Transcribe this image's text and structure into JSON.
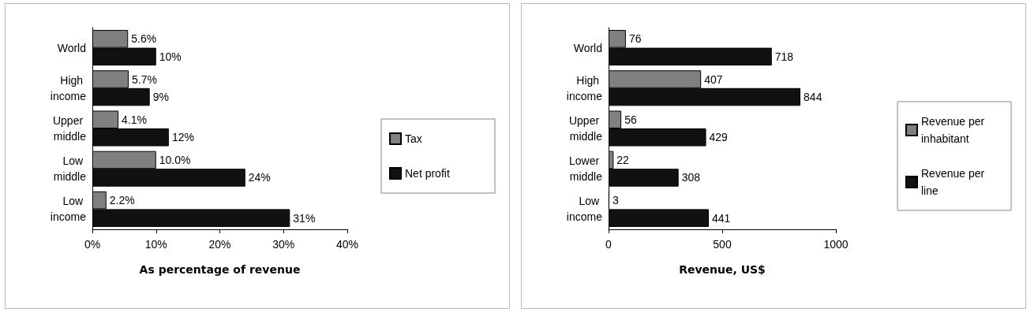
{
  "chart_data": [
    {
      "type": "bar",
      "orientation": "horizontal",
      "xlabel": "As percentage of revenue",
      "categories": [
        "World",
        "High income",
        "Upper middle",
        "Low middle",
        "Low income"
      ],
      "series": [
        {
          "name": "Tax",
          "color": "#808080",
          "values": [
            5.6,
            5.7,
            4.1,
            10.0,
            2.2
          ],
          "value_labels": [
            "5.6%",
            "5.7%",
            "4.1%",
            "10.0%",
            "2.2%"
          ]
        },
        {
          "name": "Net profit",
          "color": "#111111",
          "values": [
            10,
            9,
            12,
            24,
            31
          ],
          "value_labels": [
            "10%",
            "9%",
            "12%",
            "24%",
            "31%"
          ]
        }
      ],
      "xlim": [
        0,
        40
      ],
      "xticks": [
        {
          "value": 0,
          "label": "0%"
        },
        {
          "value": 10,
          "label": "10%"
        },
        {
          "value": 20,
          "label": "20%"
        },
        {
          "value": 30,
          "label": "30%"
        },
        {
          "value": 40,
          "label": "40%"
        }
      ],
      "grid": false,
      "legend": "right"
    },
    {
      "type": "bar",
      "orientation": "horizontal",
      "xlabel": "Revenue, US$",
      "categories": [
        "World",
        "High income",
        "Upper middle",
        "Lower middle",
        "Low income"
      ],
      "series": [
        {
          "name": "Revenue per inhabitant",
          "color": "#808080",
          "values": [
            76,
            407,
            56,
            22,
            3
          ]
        },
        {
          "name": "Revenue per line",
          "color": "#111111",
          "values": [
            718,
            844,
            429,
            308,
            441
          ]
        }
      ],
      "xlim": [
        0,
        1000
      ],
      "xticks": [
        0,
        500,
        1000
      ],
      "data_labels": true,
      "grid": false,
      "legend": "right"
    }
  ]
}
